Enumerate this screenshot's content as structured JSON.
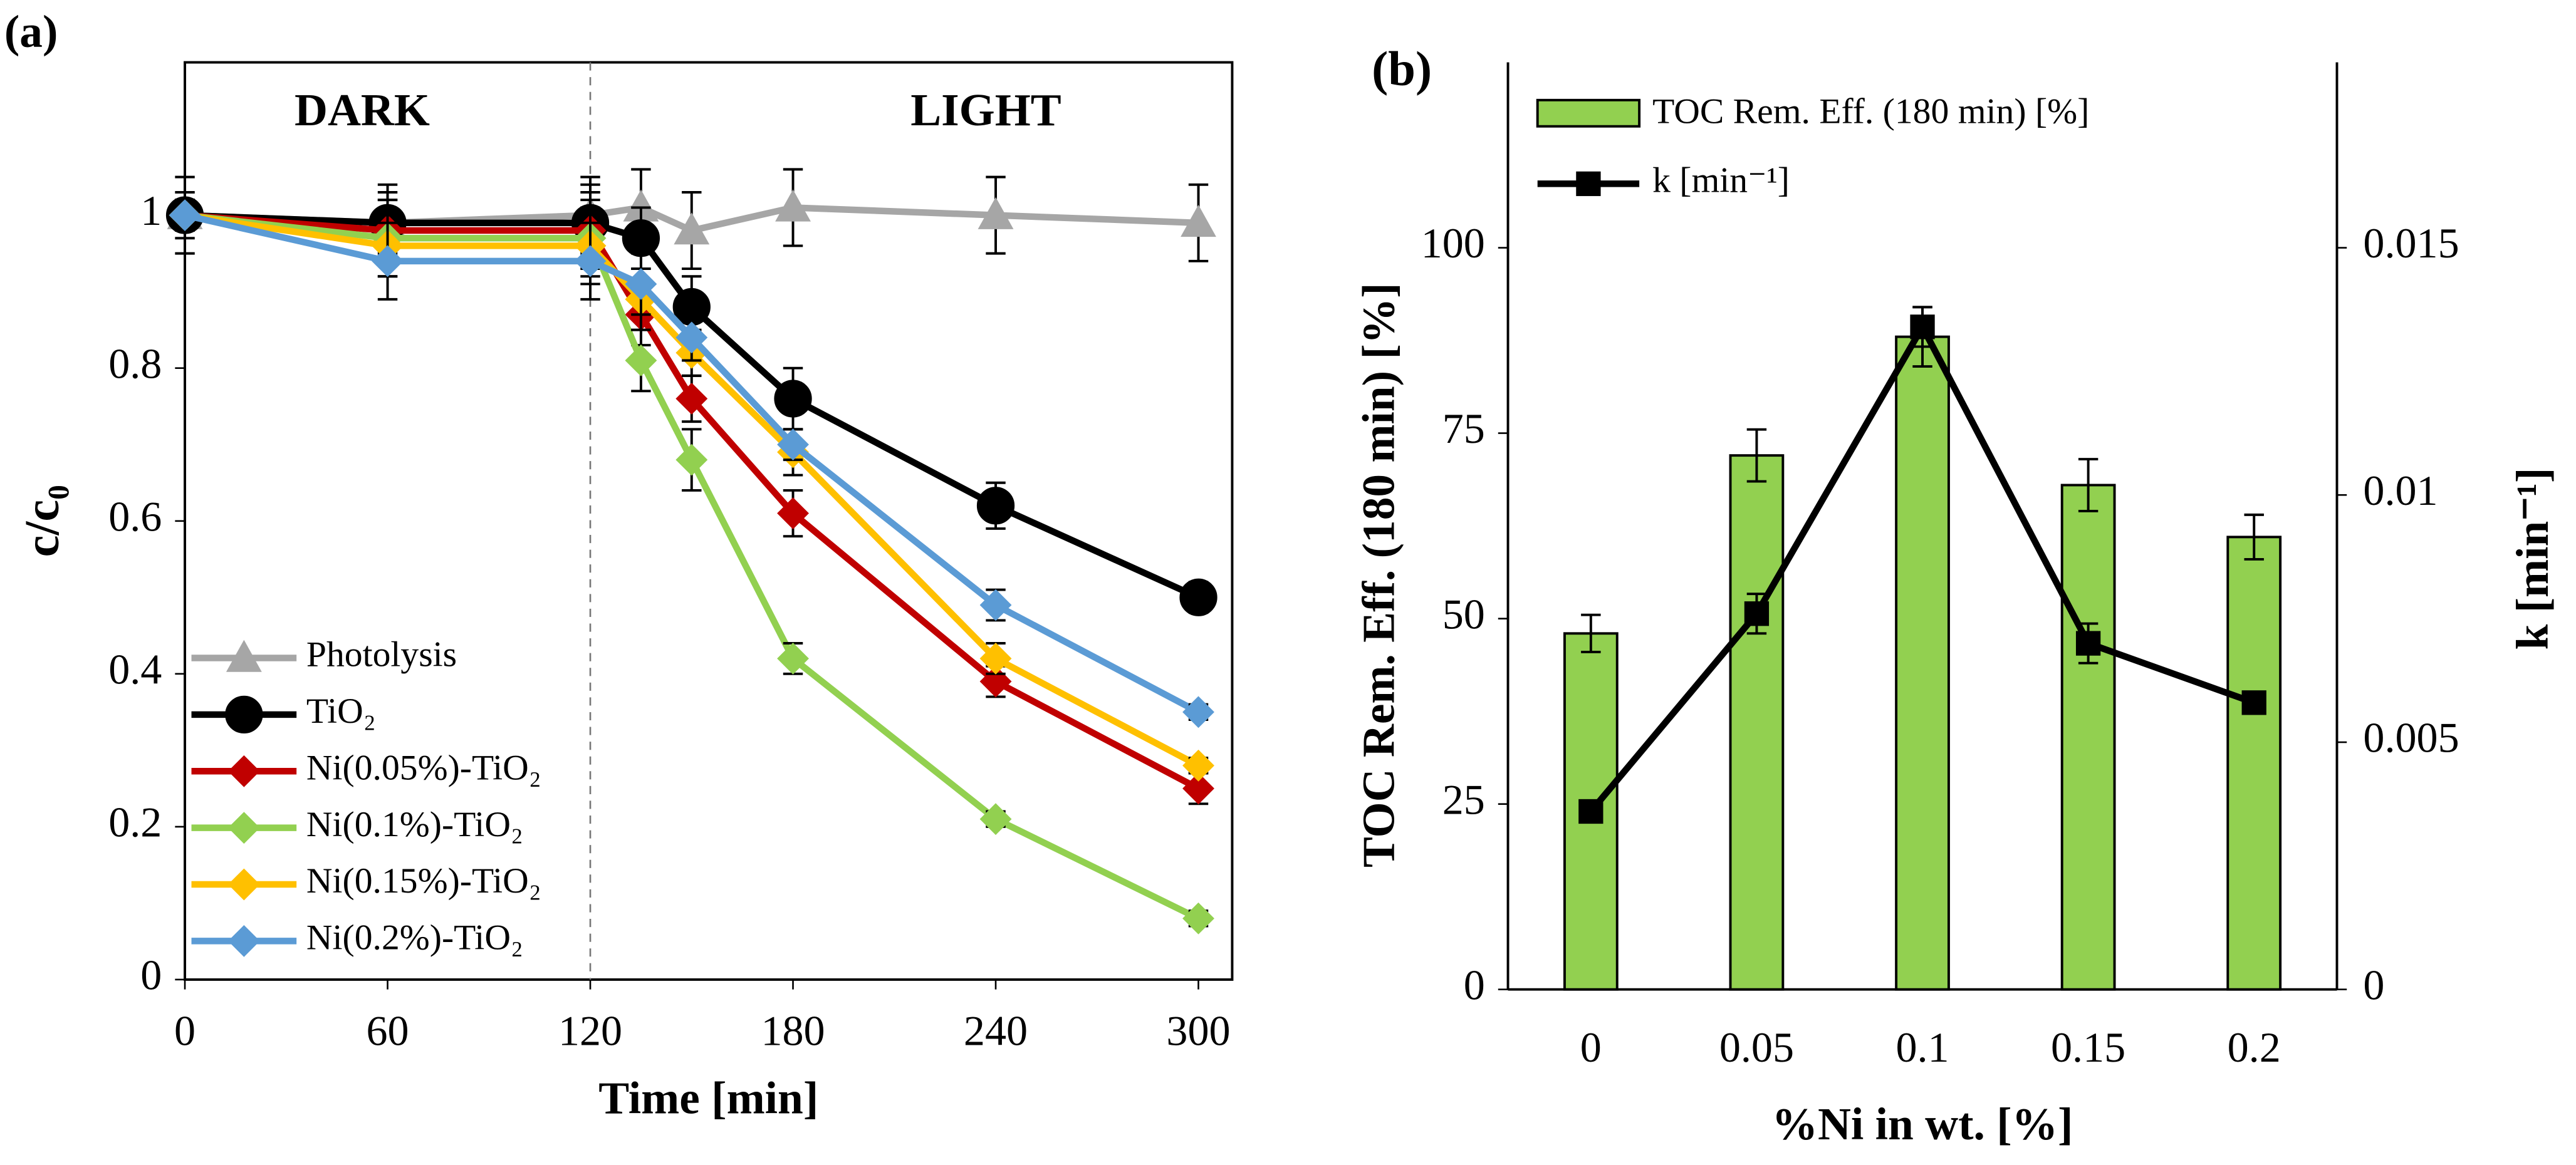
{
  "chart_data": [
    {
      "type": "line",
      "panel_label": "(a)",
      "xlabel": "Time [min]",
      "ylabel": "c/c₀",
      "annotations": [
        "DARK",
        "LIGHT"
      ],
      "divider_x": 120,
      "x": [
        0,
        60,
        120,
        135,
        150,
        180,
        240,
        300
      ],
      "xlim": [
        0,
        310
      ],
      "xticks": [
        0,
        60,
        120,
        180,
        240,
        300
      ],
      "ylim": [
        0,
        1.2
      ],
      "yticks": [
        0,
        0.2,
        0.4,
        0.6,
        0.8,
        1
      ],
      "legend": "lower left",
      "series": [
        {
          "name": "Photolysis",
          "color": "#a6a6a6",
          "marker": "triangle",
          "values": [
            1,
            0.99,
            1.0,
            1.01,
            0.98,
            1.01,
            1.0,
            0.99
          ],
          "errors": [
            0.05,
            0.05,
            0.05,
            0.05,
            0.05,
            0.05,
            0.05,
            0.05
          ]
        },
        {
          "name": "TiO₂",
          "color": "#000000",
          "marker": "circle",
          "values": [
            1,
            0.99,
            0.99,
            0.97,
            0.88,
            0.76,
            0.62,
            0.5
          ],
          "errors": [
            0.03,
            0.04,
            0.05,
            0.04,
            0.04,
            0.04,
            0.03,
            0.02
          ]
        },
        {
          "name": "Ni(0.05%)-TiO₂",
          "color": "#c00000",
          "marker": "diamond",
          "values": [
            1,
            0.98,
            0.98,
            0.87,
            0.76,
            0.61,
            0.39,
            0.25
          ],
          "errors": [
            0.02,
            0.04,
            0.05,
            0.04,
            0.03,
            0.03,
            0.02,
            0.02
          ]
        },
        {
          "name": "Ni(0.1%)-TiO₂",
          "color": "#92d050",
          "marker": "diamond",
          "values": [
            1,
            0.97,
            0.97,
            0.81,
            0.68,
            0.42,
            0.21,
            0.08
          ],
          "errors": [
            0.02,
            0.05,
            0.05,
            0.04,
            0.04,
            0.02,
            0.01,
            0.01
          ]
        },
        {
          "name": "Ni(0.15%)-TiO₂",
          "color": "#ffc000",
          "marker": "diamond",
          "values": [
            1,
            0.96,
            0.96,
            0.89,
            0.82,
            0.69,
            0.42,
            0.28
          ],
          "errors": [
            0.02,
            0.04,
            0.05,
            0.04,
            0.03,
            0.03,
            0.02,
            0.01
          ]
        },
        {
          "name": "Ni(0.2%)-TiO₂",
          "color": "#5b9bd5",
          "marker": "diamond",
          "values": [
            1,
            0.94,
            0.94,
            0.91,
            0.84,
            0.7,
            0.49,
            0.35
          ],
          "errors": [
            0.02,
            0.05,
            0.05,
            0.04,
            0.03,
            0.02,
            0.02,
            0.01
          ]
        }
      ]
    },
    {
      "type": "bar",
      "panel_label": "(b)",
      "xlabel": "%Ni in wt. [%]",
      "ylabel": "TOC Rem. Eff. (180 min) [%]",
      "y2label": "k [min⁻¹]",
      "categories": [
        "0",
        "0.05",
        "0.1",
        "0.15",
        "0.2"
      ],
      "ylim": [
        0,
        125
      ],
      "yticks": [
        0,
        25,
        50,
        75,
        100
      ],
      "y2lim": [
        0,
        0.01875
      ],
      "y2ticks": [
        0,
        0.005,
        0.01,
        0.015
      ],
      "legend": "upper left",
      "series": [
        {
          "name": "TOC Rem. Eff. (180 min) [%]",
          "type": "bar",
          "color": "#92d050",
          "values": [
            48,
            72,
            88,
            68,
            61
          ],
          "errors": [
            2.5,
            3.5,
            4,
            3.5,
            3
          ]
        },
        {
          "name": "k [min⁻¹]",
          "type": "line",
          "axis": "y2",
          "marker": "square",
          "color": "#000000",
          "values": [
            0.0036,
            0.0076,
            0.0134,
            0.007,
            0.0058
          ],
          "errors": [
            0.0002,
            0.0004,
            0.0004,
            0.0004,
            0.0002
          ]
        }
      ]
    }
  ]
}
